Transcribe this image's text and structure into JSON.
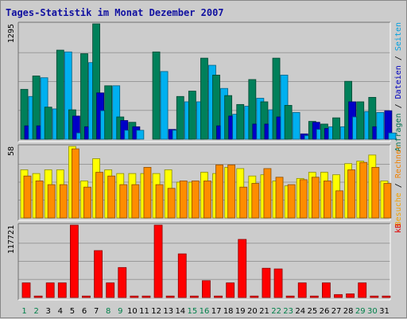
{
  "chart_data": [
    {
      "type": "bar",
      "title": "Tages-Statistik im Monat Dezember 2007",
      "categories": [
        "1",
        "2",
        "3",
        "4",
        "5",
        "6",
        "7",
        "8",
        "9",
        "10",
        "11",
        "12",
        "13",
        "14",
        "15",
        "16",
        "17",
        "18",
        "19",
        "20",
        "21",
        "22",
        "23",
        "24",
        "25",
        "26",
        "27",
        "28",
        "29",
        "30",
        "31"
      ],
      "weekend_days": [
        "1",
        "2",
        "8",
        "9",
        "15",
        "16",
        "22",
        "23",
        "29",
        "30"
      ],
      "ymax_label": "1295",
      "ymax": 1295,
      "right_label_parts": [
        {
          "text": "Anfragen",
          "color": "#007050"
        },
        {
          "text": " / ",
          "color": "#000000"
        },
        {
          "text": "Dateien",
          "color": "#0000c0"
        },
        {
          "text": " / ",
          "color": "#000000"
        },
        {
          "text": "Seiten",
          "color": "#00a0e0"
        }
      ],
      "series": [
        {
          "name": "Anfragen",
          "color": "#00805a",
          "values": [
            560,
            710,
            360,
            1000,
            330,
            960,
            1295,
            600,
            250,
            190,
            0,
            980,
            0,
            480,
            540,
            910,
            720,
            490,
            390,
            670,
            420,
            910,
            380,
            0,
            200,
            170,
            240,
            650,
            420,
            470,
            0
          ]
        },
        {
          "name": "Dateien",
          "color": "#0000c8",
          "values": [
            150,
            150,
            0,
            0,
            260,
            140,
            520,
            0,
            210,
            140,
            0,
            0,
            110,
            0,
            0,
            0,
            150,
            260,
            0,
            170,
            170,
            250,
            0,
            60,
            190,
            120,
            0,
            420,
            0,
            140,
            320
          ]
        },
        {
          "name": "Seiten",
          "color": "#00b0f0",
          "values": [
            480,
            690,
            340,
            980,
            70,
            860,
            320,
            600,
            100,
            100,
            0,
            760,
            100,
            420,
            420,
            830,
            570,
            280,
            370,
            460,
            330,
            720,
            300,
            40,
            110,
            140,
            140,
            250,
            310,
            300,
            70
          ]
        }
      ]
    },
    {
      "type": "bar",
      "ymax_label": "58",
      "ymax": 58,
      "right_label_parts": [
        {
          "text": "Besuche",
          "color": "#f0a000"
        },
        {
          "text": " / ",
          "color": "#000000"
        },
        {
          "text": "Rechner",
          "color": "#f08000"
        }
      ],
      "series": [
        {
          "name": "Besuche",
          "color": "#ffff00",
          "values": [
            39,
            36,
            39,
            39,
            58,
            30,
            48,
            39,
            36,
            36,
            36,
            36,
            39,
            29,
            29,
            37,
            36,
            41,
            40,
            34,
            35,
            30,
            26,
            32,
            37,
            37,
            35,
            44,
            46,
            51,
            30
          ]
        },
        {
          "name": "Rechner",
          "color": "#ff8c00",
          "values": [
            34,
            30,
            27,
            27,
            56,
            25,
            37,
            34,
            27,
            27,
            41,
            27,
            24,
            30,
            30,
            30,
            43,
            43,
            25,
            28,
            40,
            33,
            27,
            31,
            33,
            30,
            22,
            39,
            45,
            41,
            28
          ]
        }
      ]
    },
    {
      "type": "bar",
      "ymax_label": "117721",
      "ymax": 117721,
      "right_label_parts": [
        {
          "text": "kB",
          "color": "#e00000"
        }
      ],
      "series": [
        {
          "name": "kB",
          "color": "#ff0000",
          "values": [
            23800,
            2400,
            23800,
            23800,
            117721,
            2400,
            76300,
            23800,
            48800,
            2400,
            2400,
            117721,
            2400,
            71000,
            2400,
            27400,
            2400,
            23800,
            94500,
            2400,
            47600,
            46500,
            2400,
            23800,
            2400,
            23800,
            4800,
            6000,
            23800,
            2400,
            2400
          ]
        }
      ]
    }
  ]
}
